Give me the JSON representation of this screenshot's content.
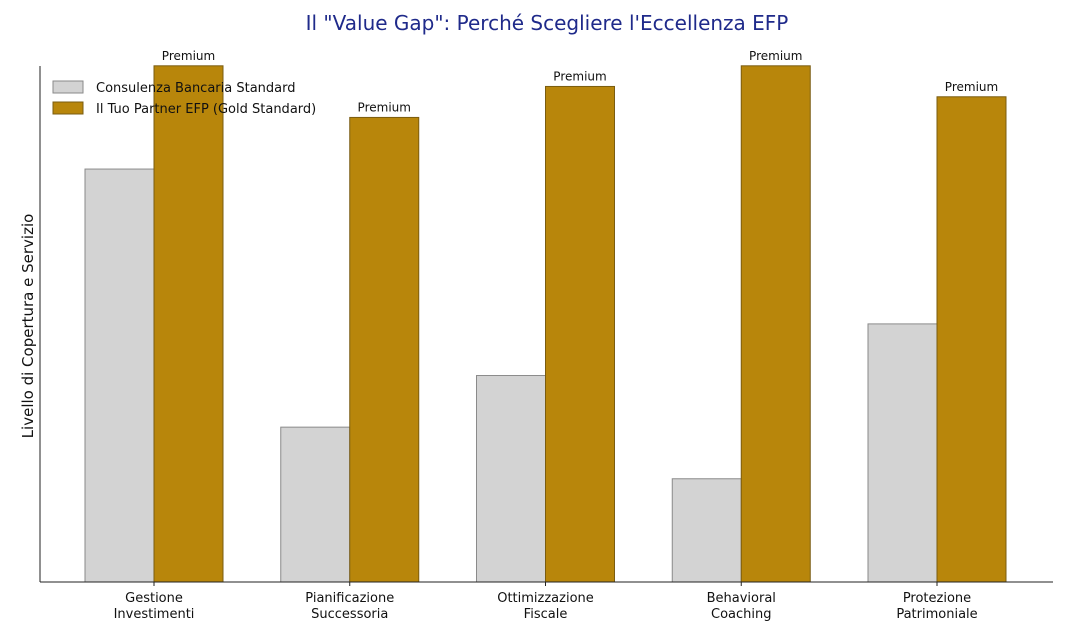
{
  "chart_data": {
    "type": "bar",
    "title": "Il \"Value Gap\": Perché Scegliere l'Eccellenza EFP",
    "xlabel": "",
    "ylabel": "Livello di Copertura e Servizio",
    "categories": [
      [
        "Gestione",
        "Investimenti"
      ],
      [
        "Pianificazione",
        "Successoria"
      ],
      [
        "Ottimizzazione",
        "Fiscale"
      ],
      [
        "Behavioral",
        "Coaching"
      ],
      [
        "Protezione",
        "Patrimoniale"
      ]
    ],
    "series": [
      {
        "name": "Consulenza Bancaria Standard",
        "values": [
          8,
          3,
          4,
          2,
          5
        ],
        "color": "#d3d3d3",
        "edge": "#8a8a8a",
        "data_labels": [
          "",
          "",
          "",
          "",
          ""
        ]
      },
      {
        "name": "Il Tuo Partner EFP (Gold Standard)",
        "values": [
          10,
          9,
          9.6,
          10,
          9.4
        ],
        "color": "#b8860b",
        "edge": "#7a5c10",
        "data_labels": [
          "Premium",
          "Premium",
          "Premium",
          "Premium",
          "Premium"
        ]
      }
    ],
    "ylim": [
      0,
      10.5
    ],
    "y_ticks_shown": false,
    "grid": false,
    "legend": "top-left"
  }
}
